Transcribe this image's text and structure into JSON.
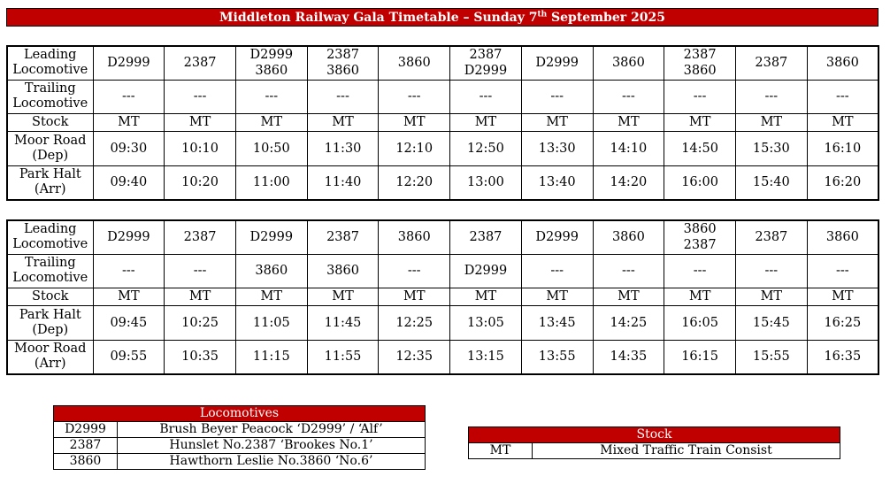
{
  "title": {
    "pre": "Middleton Railway Gala Timetable – Sunday 7",
    "sup": "th",
    "post": " September 2025"
  },
  "outbound": {
    "rows": [
      {
        "label": [
          "Leading",
          "Locomotive"
        ],
        "cells": [
          [
            "D2999"
          ],
          [
            "2387"
          ],
          [
            "D2999",
            "3860"
          ],
          [
            "2387",
            "3860"
          ],
          [
            "3860"
          ],
          [
            "2387",
            "D2999"
          ],
          [
            "D2999"
          ],
          [
            "3860"
          ],
          [
            "2387",
            "3860"
          ],
          [
            "2387"
          ],
          [
            "3860"
          ]
        ]
      },
      {
        "label": [
          "Trailing",
          "Locomotive"
        ],
        "cells": [
          [
            "---"
          ],
          [
            "---"
          ],
          [
            "---"
          ],
          [
            "---"
          ],
          [
            "---"
          ],
          [
            "---"
          ],
          [
            "---"
          ],
          [
            "---"
          ],
          [
            "---"
          ],
          [
            "---"
          ],
          [
            "---"
          ]
        ]
      },
      {
        "label": [
          "Stock"
        ],
        "cells": [
          [
            "MT"
          ],
          [
            "MT"
          ],
          [
            "MT"
          ],
          [
            "MT"
          ],
          [
            "MT"
          ],
          [
            "MT"
          ],
          [
            "MT"
          ],
          [
            "MT"
          ],
          [
            "MT"
          ],
          [
            "MT"
          ],
          [
            "MT"
          ]
        ]
      },
      {
        "label": [
          "Moor Road",
          "(Dep)"
        ],
        "cells": [
          [
            "09:30"
          ],
          [
            "10:10"
          ],
          [
            "10:50"
          ],
          [
            "11:30"
          ],
          [
            "12:10"
          ],
          [
            "12:50"
          ],
          [
            "13:30"
          ],
          [
            "14:10"
          ],
          [
            "14:50"
          ],
          [
            "15:30"
          ],
          [
            "16:10"
          ]
        ]
      },
      {
        "label": [
          "Park Halt",
          "(Arr)"
        ],
        "cells": [
          [
            "09:40"
          ],
          [
            "10:20"
          ],
          [
            "11:00"
          ],
          [
            "11:40"
          ],
          [
            "12:20"
          ],
          [
            "13:00"
          ],
          [
            "13:40"
          ],
          [
            "14:20"
          ],
          [
            "16:00"
          ],
          [
            "15:40"
          ],
          [
            "16:20"
          ]
        ]
      }
    ]
  },
  "inbound": {
    "rows": [
      {
        "label": [
          "Leading",
          "Locomotive"
        ],
        "cells": [
          [
            "D2999"
          ],
          [
            "2387"
          ],
          [
            "D2999"
          ],
          [
            "2387"
          ],
          [
            "3860"
          ],
          [
            "2387"
          ],
          [
            "D2999"
          ],
          [
            "3860"
          ],
          [
            "3860",
            "2387"
          ],
          [
            "2387"
          ],
          [
            "3860"
          ]
        ]
      },
      {
        "label": [
          "Trailing",
          "Locomotive"
        ],
        "cells": [
          [
            "---"
          ],
          [
            "---"
          ],
          [
            "3860"
          ],
          [
            "3860"
          ],
          [
            "---"
          ],
          [
            "D2999"
          ],
          [
            "---"
          ],
          [
            "---"
          ],
          [
            "---"
          ],
          [
            "---"
          ],
          [
            "---"
          ]
        ]
      },
      {
        "label": [
          "Stock"
        ],
        "cells": [
          [
            "MT"
          ],
          [
            "MT"
          ],
          [
            "MT"
          ],
          [
            "MT"
          ],
          [
            "MT"
          ],
          [
            "MT"
          ],
          [
            "MT"
          ],
          [
            "MT"
          ],
          [
            "MT"
          ],
          [
            "MT"
          ],
          [
            "MT"
          ]
        ]
      },
      {
        "label": [
          "Park Halt",
          "(Dep)"
        ],
        "cells": [
          [
            "09:45"
          ],
          [
            "10:25"
          ],
          [
            "11:05"
          ],
          [
            "11:45"
          ],
          [
            "12:25"
          ],
          [
            "13:05"
          ],
          [
            "13:45"
          ],
          [
            "14:25"
          ],
          [
            "16:05"
          ],
          [
            "15:45"
          ],
          [
            "16:25"
          ]
        ]
      },
      {
        "label": [
          "Moor Road",
          "(Arr)"
        ],
        "cells": [
          [
            "09:55"
          ],
          [
            "10:35"
          ],
          [
            "11:15"
          ],
          [
            "11:55"
          ],
          [
            "12:35"
          ],
          [
            "13:15"
          ],
          [
            "13:55"
          ],
          [
            "14:35"
          ],
          [
            "16:15"
          ],
          [
            "15:55"
          ],
          [
            "16:35"
          ]
        ]
      }
    ]
  },
  "locomotives": {
    "heading": "Locomotives",
    "items": [
      {
        "code": "D2999",
        "name": "Brush Beyer Peacock ‘D2999’ / ‘Alf’"
      },
      {
        "code": "2387",
        "name": "Hunslet No.2387 ‘Brookes No.1’"
      },
      {
        "code": "3860",
        "name": "Hawthorn Leslie No.3860 ‘No.6’"
      }
    ]
  },
  "stock": {
    "heading": "Stock",
    "items": [
      {
        "code": "MT",
        "name": "Mixed Traffic Train Consist"
      }
    ]
  },
  "colors": {
    "header_red": "#c00000"
  }
}
